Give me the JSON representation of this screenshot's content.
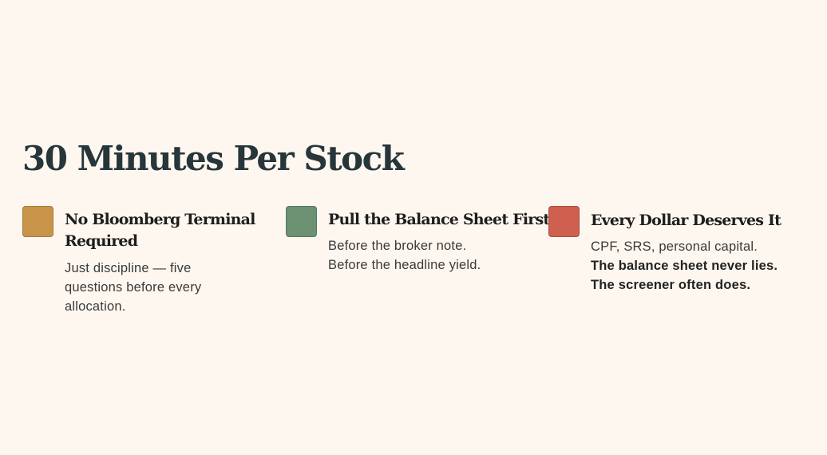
{
  "page": {
    "title": "30 Minutes Per Stock"
  },
  "cards": [
    {
      "swatch_color": "#c8944a",
      "title": "No Bloomberg Terminal Required",
      "text": "Just discipline — five questions before every allocation."
    },
    {
      "swatch_color": "#6b9172",
      "title": "Pull the Balance Sheet First",
      "text_line1": "Before the broker note.",
      "text_line2": "Before the headline yield."
    },
    {
      "swatch_color": "#cf5f4f",
      "title": "Every Dollar Deserves It",
      "text": "CPF, SRS, personal capital.",
      "text_bold": "The balance sheet never lies. The screener often does."
    }
  ]
}
